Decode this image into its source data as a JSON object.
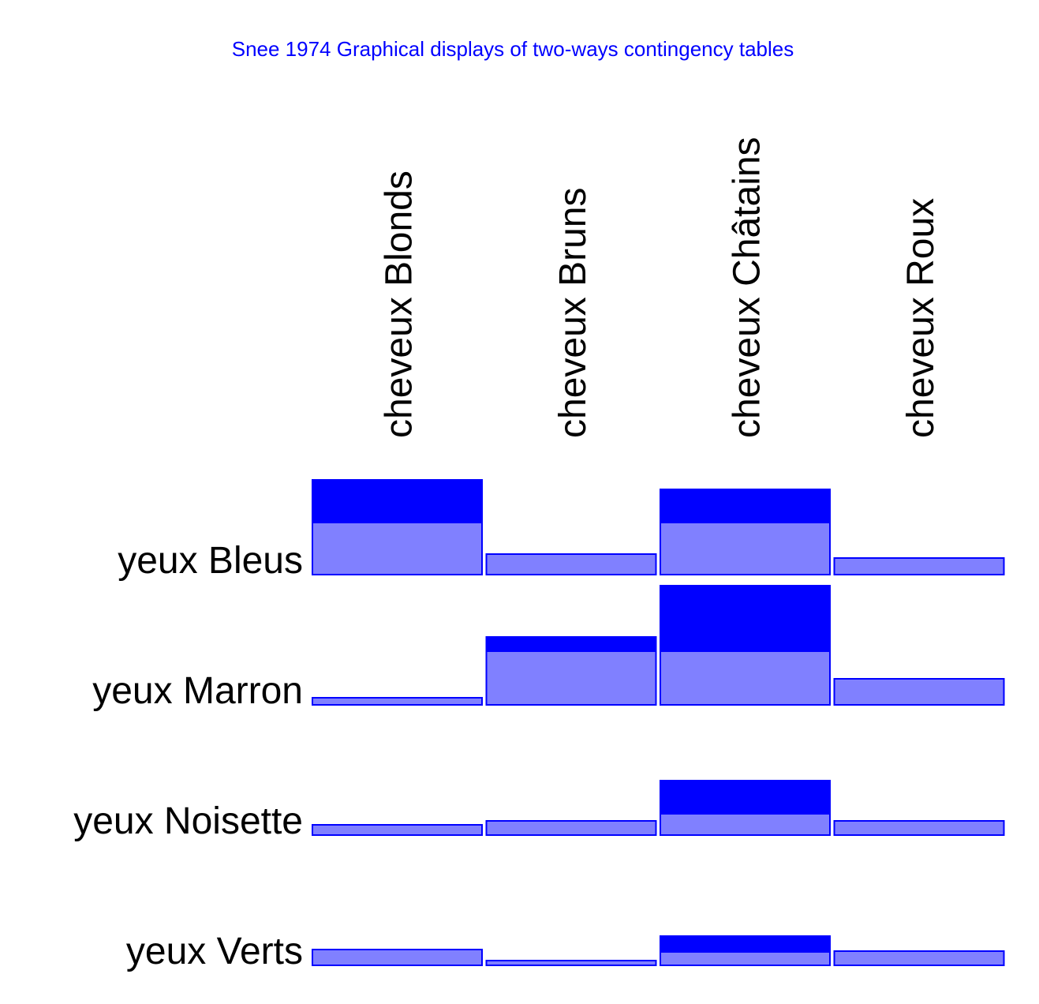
{
  "chart_data": {
    "type": "bar",
    "title": "Snee 1974 Graphical displays of two-ways contingency tables",
    "categories": [
      "cheveux Blonds",
      "cheveux Bruns",
      "cheveux Châtains",
      "cheveux Roux"
    ],
    "rows": [
      {
        "label": "yeux Bleus",
        "values": [
          66,
          26,
          66,
          21
        ],
        "excess": [
          54,
          0,
          42,
          0
        ]
      },
      {
        "label": "yeux Marron",
        "values": [
          9,
          68,
          68,
          33
        ],
        "excess": [
          0,
          18,
          83,
          0
        ]
      },
      {
        "label": "yeux Noisette",
        "values": [
          13,
          18,
          27,
          18
        ],
        "excess": [
          0,
          0,
          42,
          0
        ]
      },
      {
        "label": "yeux Verts",
        "values": [
          20,
          6,
          17,
          18
        ],
        "excess": [
          0,
          0,
          20,
          0
        ]
      }
    ],
    "color": "#8080ff",
    "excess_color": "#0000ff",
    "edge_color": "#0000ff"
  }
}
